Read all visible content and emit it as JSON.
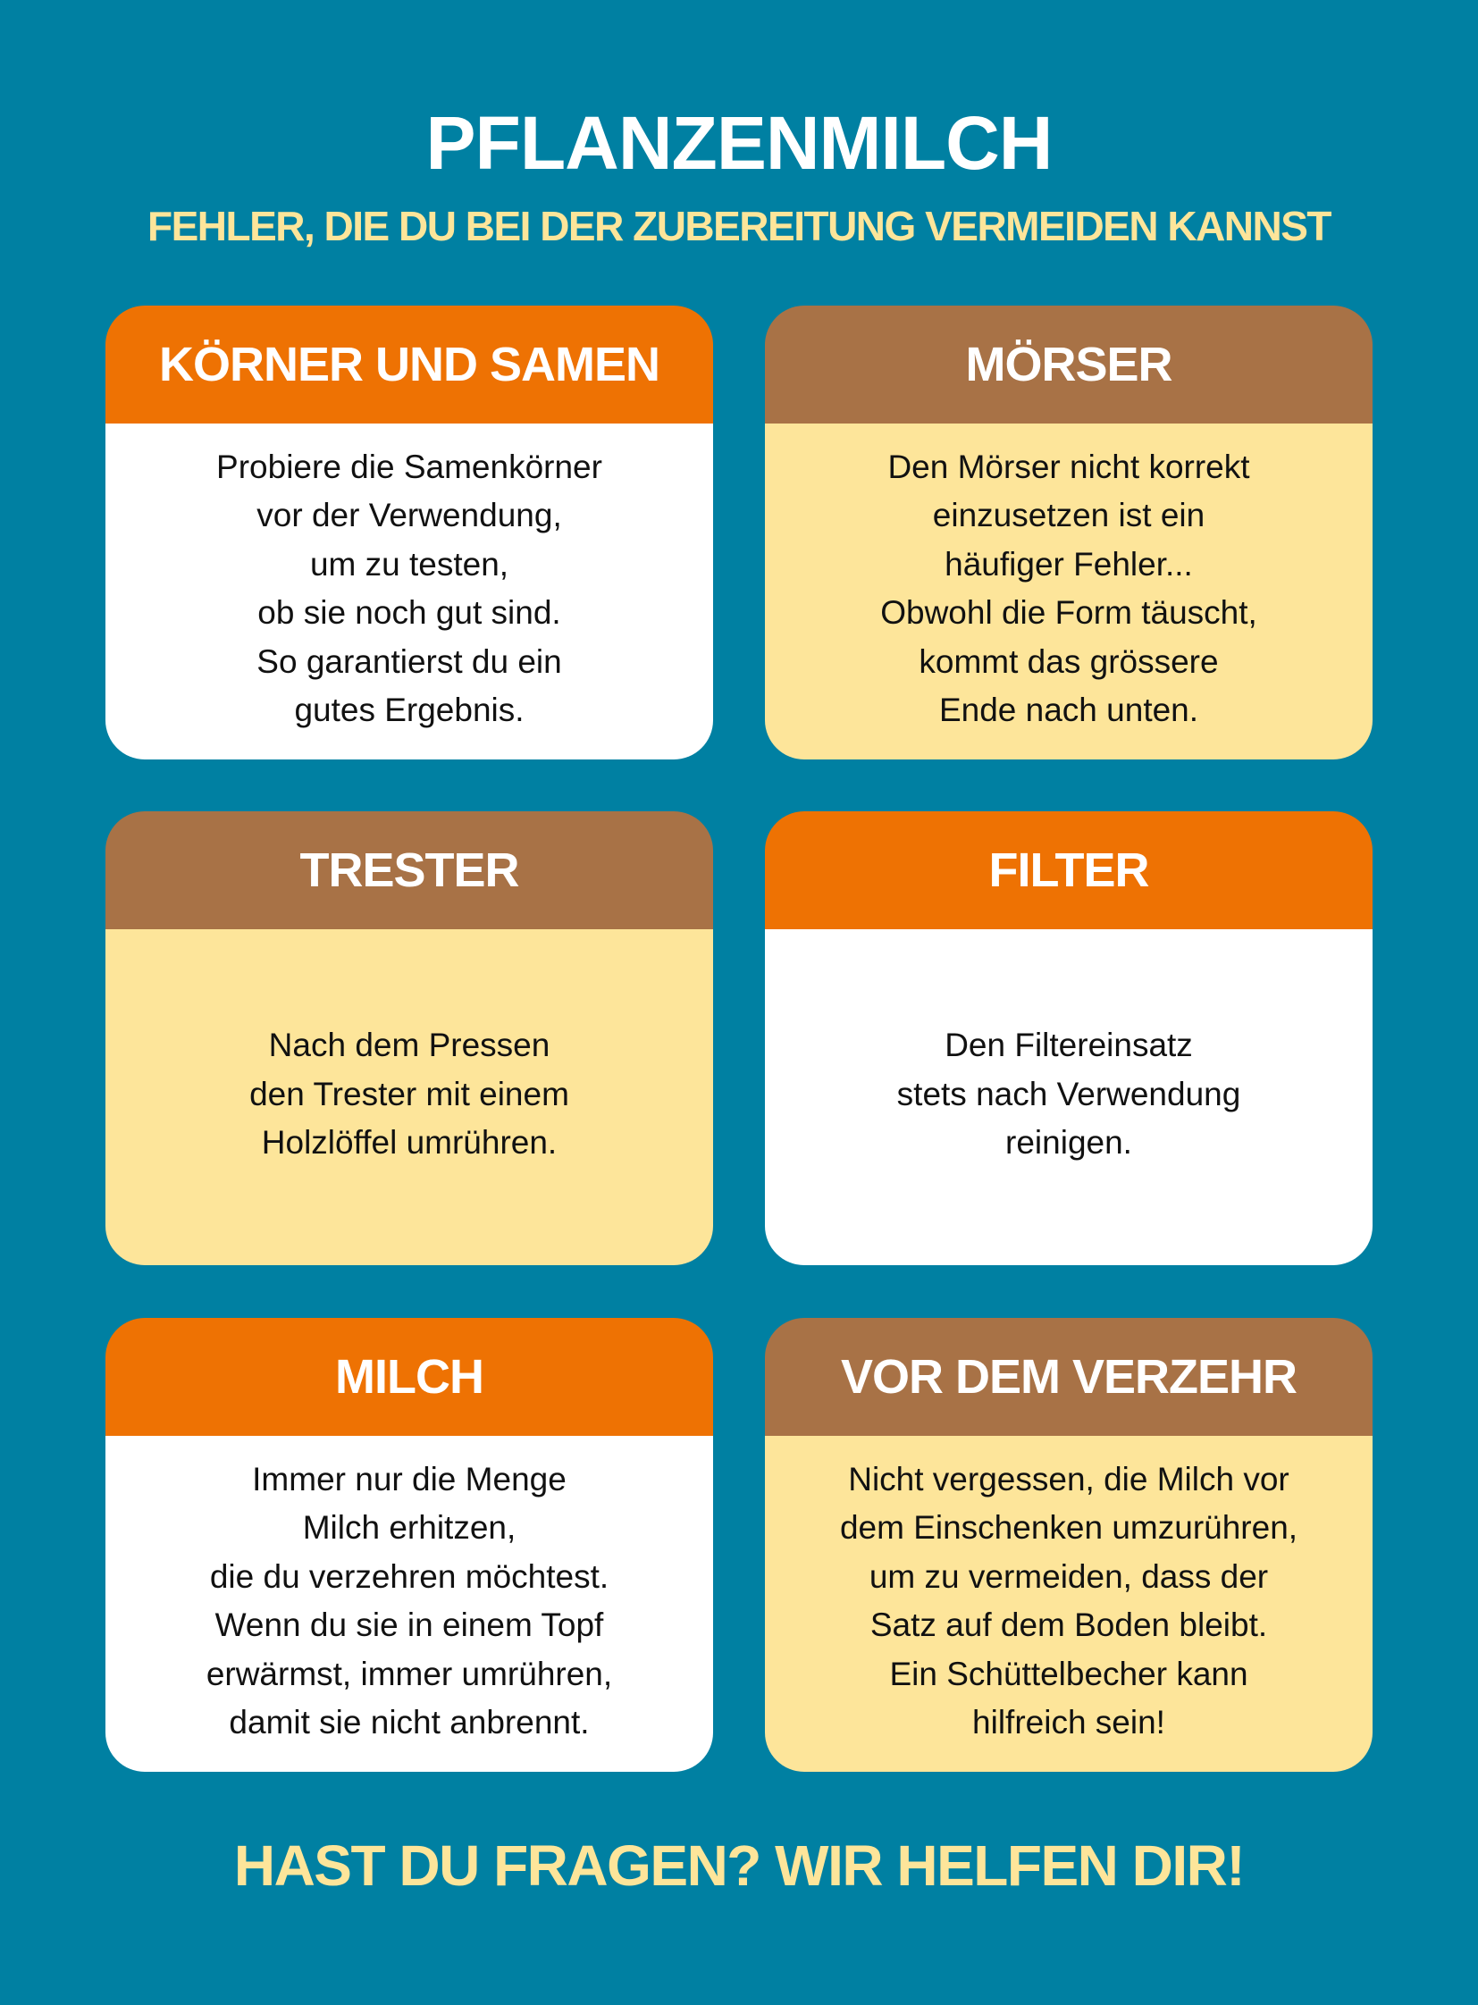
{
  "title": "PFLANZENMILCH",
  "subtitle": "FEHLER, DIE DU BEI DER ZUBEREITUNG VERMEIDEN KANNST",
  "colors": {
    "background": "#0080a2",
    "orange": "#ee7203",
    "brown": "#a87246",
    "yellow": "#fde59a",
    "white": "#ffffff"
  },
  "cards": [
    {
      "heading": "KÖRNER UND SAMEN",
      "text": "Probiere die Samenkörner\nvor der Verwendung,\num zu testen,\nob sie noch gut sind.\nSo garantierst du ein\ngutes Ergebnis."
    },
    {
      "heading": "MÖRSER",
      "text": "Den Mörser nicht korrekt\neinzusetzen ist ein\nhäufiger Fehler...\nObwohl die Form täuscht,\nkommt das grössere\nEnde nach unten."
    },
    {
      "heading": "TRESTER",
      "text": "Nach dem Pressen\nden Trester mit einem\nHolzlöffel umrühren."
    },
    {
      "heading": "FILTER",
      "text": "Den Filtereinsatz\nstets nach Verwendung\nreinigen."
    },
    {
      "heading": "MILCH",
      "text": "Immer nur die Menge\nMilch erhitzen,\ndie du verzehren möchtest.\nWenn du sie in einem Topf\nerwärmst, immer umrühren,\ndamit sie nicht anbrennt."
    },
    {
      "heading": "VOR DEM VERZEHR",
      "text": "Nicht vergessen, die Milch vor\ndem Einschenken umzurühren,\num zu vermeiden, dass der\nSatz auf dem Boden bleibt.\nEin Schüttelbecher kann\nhilfreich sein!"
    }
  ],
  "footer": "HAST DU FRAGEN? WIR HELFEN DIR!"
}
